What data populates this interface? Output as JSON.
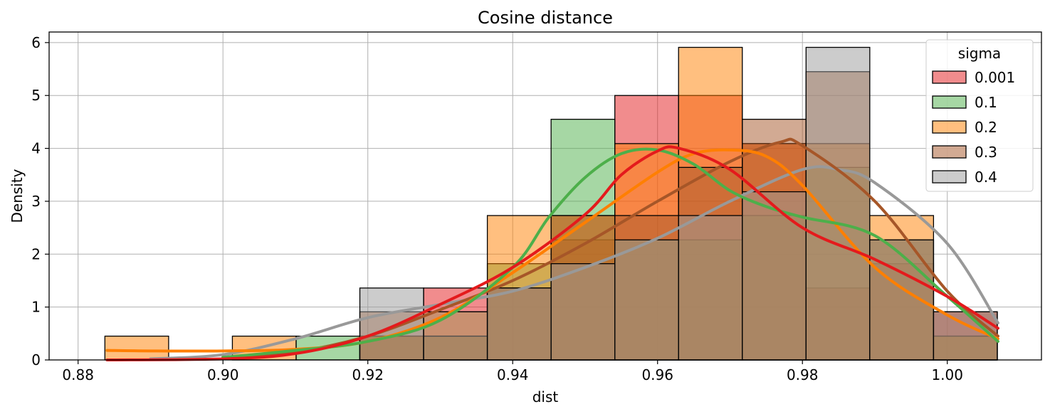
{
  "chart_data": {
    "type": "histogram",
    "title": "Cosine distance",
    "xlabel": "dist",
    "ylabel": "Density",
    "xlim": [
      0.876,
      1.013
    ],
    "ylim": [
      0,
      6.2
    ],
    "xticks": [
      0.88,
      0.9,
      0.92,
      0.94,
      0.96,
      0.98,
      1.0
    ],
    "xtick_labels": [
      "0.88",
      "0.90",
      "0.92",
      "0.94",
      "0.96",
      "0.98",
      "1.00"
    ],
    "yticks": [
      0,
      1,
      2,
      3,
      4,
      5,
      6
    ],
    "ytick_labels": [
      "0",
      "1",
      "2",
      "3",
      "4",
      "5",
      "6"
    ],
    "grid": true,
    "legend": {
      "title": "sigma",
      "placement": "top-right"
    },
    "bin_edges": [
      0.8837,
      0.8925,
      0.9013,
      0.9101,
      0.9189,
      0.9277,
      0.9365,
      0.9453,
      0.9541,
      0.9629,
      0.9717,
      0.9805,
      0.9893,
      0.9981,
      1.0069
    ],
    "series": [
      {
        "name": "0.001",
        "color": "#e41a1c",
        "density": [
          0,
          0,
          0,
          0,
          0.45,
          1.36,
          1.36,
          2.27,
          5.0,
          5.0,
          4.09,
          1.36,
          1.82,
          0.91
        ],
        "kde_x": [
          0.884,
          0.9,
          0.91,
          0.92,
          0.93,
          0.94,
          0.95,
          0.955,
          0.96,
          0.963,
          0.97,
          0.98,
          0.99,
          1.0,
          1.007
        ],
        "kde_y": [
          0.0,
          0.02,
          0.12,
          0.45,
          1.05,
          1.75,
          2.75,
          3.5,
          3.95,
          4.0,
          3.6,
          2.5,
          1.9,
          1.2,
          0.6
        ]
      },
      {
        "name": "0.1",
        "color": "#4daf4a",
        "density": [
          0,
          0,
          0,
          0.45,
          0.45,
          0.45,
          1.82,
          4.55,
          2.27,
          2.27,
          2.73,
          3.64,
          2.27,
          0.45
        ],
        "kde_x": [
          0.9,
          0.91,
          0.92,
          0.93,
          0.94,
          0.945,
          0.95,
          0.955,
          0.96,
          0.965,
          0.97,
          0.975,
          0.98,
          0.99,
          1.0,
          1.007
        ],
        "kde_y": [
          0.05,
          0.18,
          0.35,
          0.75,
          1.75,
          2.7,
          3.45,
          3.9,
          3.97,
          3.7,
          3.2,
          2.9,
          2.7,
          2.35,
          1.2,
          0.35
        ]
      },
      {
        "name": "0.2",
        "color": "#ff7f00",
        "density": [
          0.45,
          0,
          0.45,
          0,
          0.45,
          0.91,
          2.73,
          2.73,
          4.09,
          5.91,
          4.09,
          4.09,
          2.73,
          0.45
        ],
        "kde_x": [
          0.884,
          0.89,
          0.9,
          0.91,
          0.92,
          0.93,
          0.94,
          0.95,
          0.96,
          0.965,
          0.97,
          0.975,
          0.98,
          0.99,
          1.0,
          1.007
        ],
        "kde_y": [
          0.18,
          0.17,
          0.17,
          0.2,
          0.35,
          0.8,
          1.65,
          2.6,
          3.55,
          3.9,
          3.97,
          3.85,
          3.3,
          1.75,
          0.85,
          0.4
        ]
      },
      {
        "name": "0.3",
        "color": "#a65628",
        "density": [
          0,
          0,
          0,
          0,
          0.91,
          0.45,
          1.36,
          2.73,
          2.73,
          3.64,
          4.55,
          5.45,
          2.27,
          0.91
        ],
        "kde_x": [
          0.9,
          0.91,
          0.92,
          0.93,
          0.94,
          0.95,
          0.96,
          0.97,
          0.977,
          0.98,
          0.99,
          1.0,
          1.007
        ],
        "kde_y": [
          0.05,
          0.15,
          0.45,
          0.95,
          1.5,
          2.2,
          3.0,
          3.75,
          4.12,
          4.05,
          3.0,
          1.3,
          0.45
        ]
      },
      {
        "name": "0.4",
        "color": "#999999",
        "density": [
          0,
          0,
          0,
          0,
          1.36,
          0.91,
          1.36,
          1.82,
          2.27,
          2.73,
          3.18,
          5.91,
          2.27,
          0.91
        ],
        "kde_x": [
          0.89,
          0.9,
          0.91,
          0.92,
          0.93,
          0.94,
          0.95,
          0.96,
          0.97,
          0.98,
          0.985,
          0.99,
          1.0,
          1.007
        ],
        "kde_y": [
          0.02,
          0.1,
          0.4,
          0.8,
          1.05,
          1.3,
          1.75,
          2.3,
          3.0,
          3.6,
          3.6,
          3.35,
          2.2,
          0.7
        ]
      }
    ]
  }
}
